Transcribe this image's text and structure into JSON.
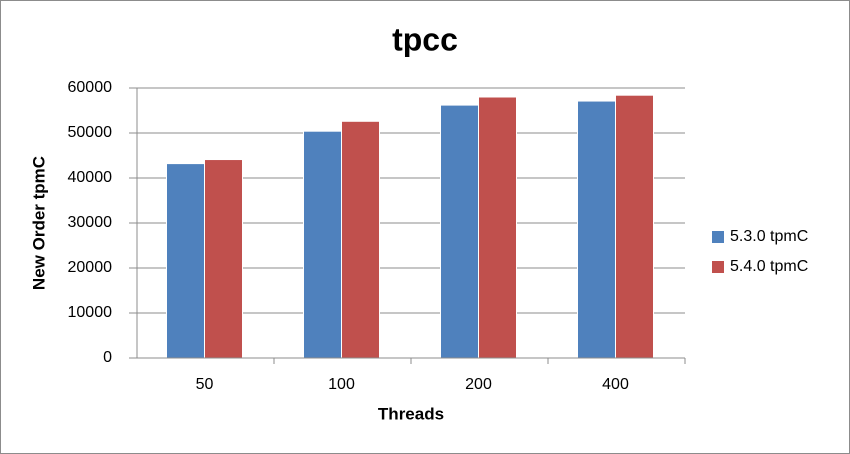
{
  "chart_data": {
    "type": "bar",
    "title": "tpcc",
    "x_label": "Threads",
    "y_label": "New Order tpmC",
    "categories": [
      "50",
      "100",
      "200",
      "400"
    ],
    "series": [
      {
        "name": "5.3.0 tpmC",
        "color": "#4f81bd",
        "values": [
          43200,
          50400,
          56200,
          57100
        ]
      },
      {
        "name": "5.4.0 tpmC",
        "color": "#c0504d",
        "values": [
          44100,
          52600,
          58000,
          58400
        ]
      }
    ],
    "ylim": [
      0,
      60000
    ],
    "yticks": [
      0,
      10000,
      20000,
      30000,
      40000,
      50000,
      60000
    ],
    "grid": true,
    "legend": "right"
  }
}
